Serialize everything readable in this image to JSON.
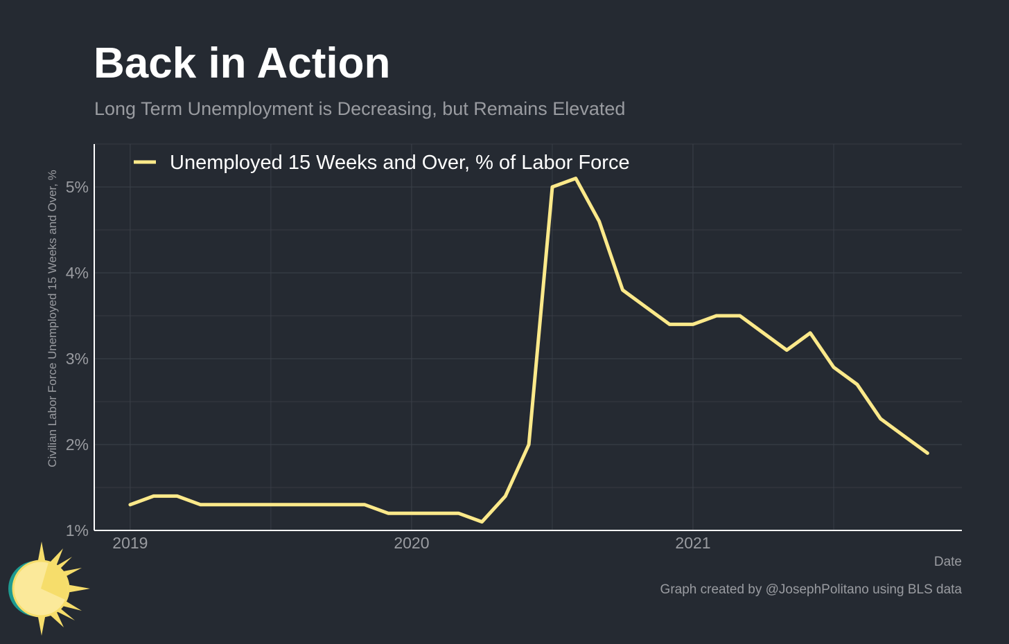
{
  "title": "Back in Action",
  "subtitle": "Long Term Unemployment is Decreasing, but Remains Elevated",
  "caption": "Graph created by @JosephPolitano using BLS data",
  "colors": {
    "background": "#252a32",
    "line": "#fce98a",
    "grid": "#3c414a",
    "axis": "#ffffff",
    "muted_text": "#9a9ca1"
  },
  "logo_icon": "sun-icon",
  "chart_data": {
    "type": "line",
    "title": "Back in Action",
    "subtitle": "Long Term Unemployment is Decreasing, but Remains Elevated",
    "xlabel": "Date",
    "ylabel": "Civilian Labor Force Unemployed 15 Weeks and Over, %",
    "xlim": [
      "2018-11-15",
      "2021-12-15"
    ],
    "ylim": [
      1,
      5.5
    ],
    "x_ticks": [
      "2019-01",
      "2020-01",
      "2021-01"
    ],
    "x_tick_labels": [
      "2019",
      "2020",
      "2021"
    ],
    "y_ticks": [
      1,
      2,
      3,
      4,
      5
    ],
    "y_tick_labels": [
      "1%",
      "2%",
      "3%",
      "4%",
      "5%"
    ],
    "grid": true,
    "legend_position": "top-left",
    "series": [
      {
        "name": "Unemployed 15 Weeks and Over, % of Labor Force",
        "x": [
          "2019-01",
          "2019-02",
          "2019-03",
          "2019-04",
          "2019-05",
          "2019-06",
          "2019-07",
          "2019-08",
          "2019-09",
          "2019-10",
          "2019-11",
          "2019-12",
          "2020-01",
          "2020-02",
          "2020-03",
          "2020-04",
          "2020-05",
          "2020-06",
          "2020-07",
          "2020-08",
          "2020-09",
          "2020-10",
          "2020-11",
          "2020-12",
          "2021-01",
          "2021-02",
          "2021-03",
          "2021-04",
          "2021-05",
          "2021-06",
          "2021-07",
          "2021-08",
          "2021-09",
          "2021-10",
          "2021-11"
        ],
        "values": [
          1.3,
          1.4,
          1.4,
          1.3,
          1.3,
          1.3,
          1.3,
          1.3,
          1.3,
          1.3,
          1.3,
          1.2,
          1.2,
          1.2,
          1.2,
          1.1,
          1.4,
          2.0,
          5.0,
          5.1,
          4.6,
          3.8,
          3.6,
          3.4,
          3.4,
          3.5,
          3.5,
          3.3,
          3.1,
          3.3,
          2.9,
          2.7,
          2.3,
          2.1,
          1.9
        ]
      }
    ]
  }
}
